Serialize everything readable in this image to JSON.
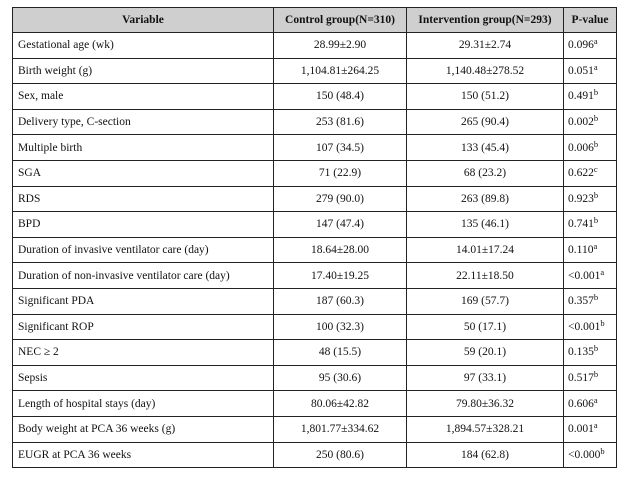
{
  "table": {
    "headers": [
      "Variable",
      "Control group(N=310)",
      "Intervention group(N=293)",
      "P-value"
    ],
    "rows": [
      {
        "variable": "Gestational age (wk)",
        "control": "28.99±2.90",
        "intervention": "29.31±2.74",
        "p": "0.096",
        "sup": "a"
      },
      {
        "variable": "Birth weight (g)",
        "control": "1,104.81±264.25",
        "intervention": "1,140.48±278.52",
        "p": "0.051",
        "sup": "a"
      },
      {
        "variable": "Sex, male",
        "control": "150 (48.4)",
        "intervention": "150 (51.2)",
        "p": "0.491",
        "sup": "b"
      },
      {
        "variable": "Delivery type, C-section",
        "control": "253 (81.6)",
        "intervention": "265 (90.4)",
        "p": "0.002",
        "sup": "b"
      },
      {
        "variable": "Multiple birth",
        "control": "107 (34.5)",
        "intervention": "133 (45.4)",
        "p": "0.006",
        "sup": "b"
      },
      {
        "variable": "SGA",
        "control": "71 (22.9)",
        "intervention": "68 (23.2)",
        "p": "0.622",
        "sup": "c"
      },
      {
        "variable": "RDS",
        "control": "279 (90.0)",
        "intervention": "263 (89.8)",
        "p": "0.923",
        "sup": "b"
      },
      {
        "variable": "BPD",
        "control": "147 (47.4)",
        "intervention": "135 (46.1)",
        "p": "0.741",
        "sup": "b"
      },
      {
        "variable": "Duration of invasive ventilator care (day)",
        "control": "18.64±28.00",
        "intervention": "14.01±17.24",
        "p": "0.110",
        "sup": "a"
      },
      {
        "variable": "Duration of non-invasive ventilator care (day)",
        "control": "17.40±19.25",
        "intervention": "22.11±18.50",
        "p": "<0.001",
        "sup": "a"
      },
      {
        "variable": "Significant PDA",
        "control": "187 (60.3)",
        "intervention": "169 (57.7)",
        "p": "0.357",
        "sup": "b"
      },
      {
        "variable": "Significant ROP",
        "control": "100 (32.3)",
        "intervention": "50 (17.1)",
        "p": "<0.001",
        "sup": "b"
      },
      {
        "variable": "NEC ≥ 2",
        "control": "48 (15.5)",
        "intervention": "59 (20.1)",
        "p": "0.135",
        "sup": "b"
      },
      {
        "variable": "Sepsis",
        "control": "95 (30.6)",
        "intervention": "97 (33.1)",
        "p": "0.517",
        "sup": "b"
      },
      {
        "variable": "Length of hospital stays (day)",
        "control": "80.06±42.82",
        "intervention": "79.80±36.32",
        "p": "0.606",
        "sup": "a"
      },
      {
        "variable": "Body weight at PCA 36 weeks (g)",
        "control": "1,801.77±334.62",
        "intervention": "1,894.57±328.21",
        "p": "0.001",
        "sup": "a"
      },
      {
        "variable": "EUGR at PCA 36 weeks",
        "control": "250 (80.6)",
        "intervention": "184 (62.8)",
        "p": "<0.000",
        "sup": "b"
      }
    ]
  }
}
